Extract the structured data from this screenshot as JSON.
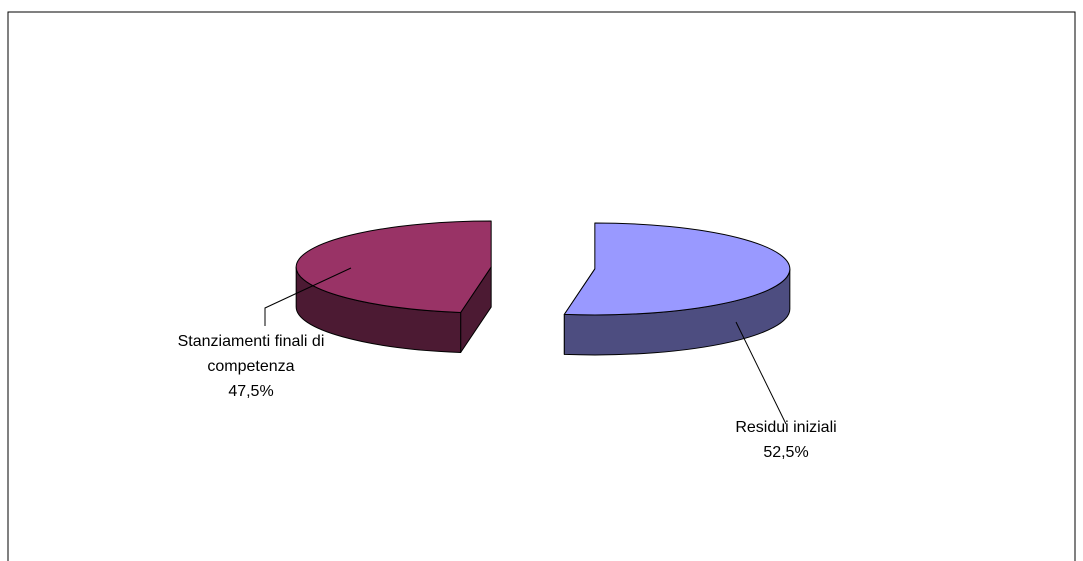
{
  "chart_data": {
    "type": "pie",
    "title": "",
    "style": "3d-exploded",
    "slices": [
      {
        "label_lines": [
          "Residui iniziali"
        ],
        "percent_label": "52,5%",
        "value": 52.5,
        "top_color": "#9999ff",
        "side_color": "#4d4d80"
      },
      {
        "label_lines": [
          "Stanziamenti finali di",
          "competenza"
        ],
        "percent_label": "47,5%",
        "value": 47.5,
        "top_color": "#993366",
        "side_color": "#4c1a33"
      }
    ]
  }
}
